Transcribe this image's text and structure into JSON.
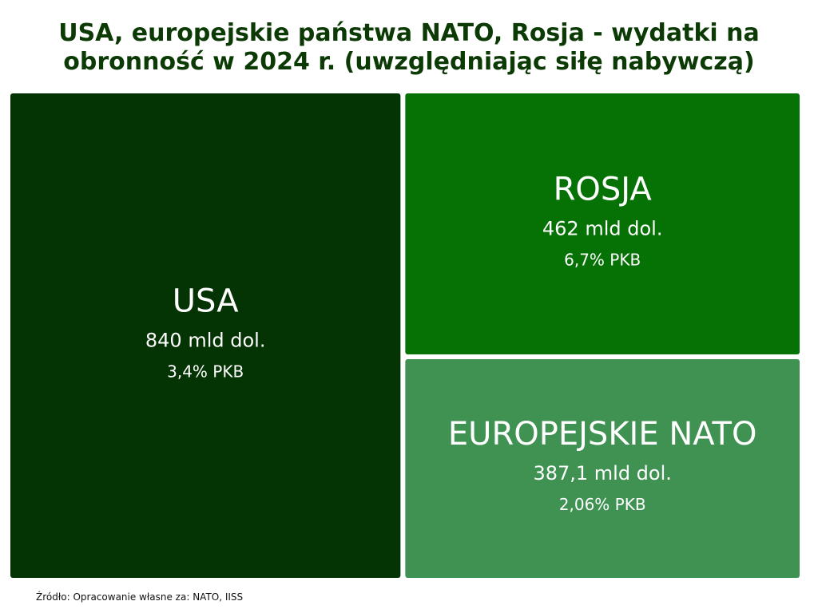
{
  "title": {
    "line1": "USA, europejskie państwa NATO, Rosja - wydatki na",
    "line2": "obronność w 2024 r. (uwzględniając siłę nabywczą)"
  },
  "chart_data": {
    "type": "treemap",
    "title": "USA, europejskie państwa NATO, Rosja - wydatki na obronność w 2024 r. (uwzględniając siłę nabywczą)",
    "unit": "mld dol.",
    "items": [
      {
        "name": "USA",
        "value": 840,
        "value_label": "840 mld dol.",
        "share_label": "3,4% PKB",
        "color": "#043304"
      },
      {
        "name": "ROSJA",
        "value": 462,
        "value_label": "462 mld dol.",
        "share_label": "6,7% PKB",
        "color": "#067206"
      },
      {
        "name": "EUROPEJSKIE NATO",
        "value": 387.1,
        "value_label": "387,1 mld dol.",
        "share_label": "2,06% PKB",
        "color": "#3f9251"
      }
    ]
  },
  "source": "Źródło: Opracowanie własne za: NATO, IISS"
}
